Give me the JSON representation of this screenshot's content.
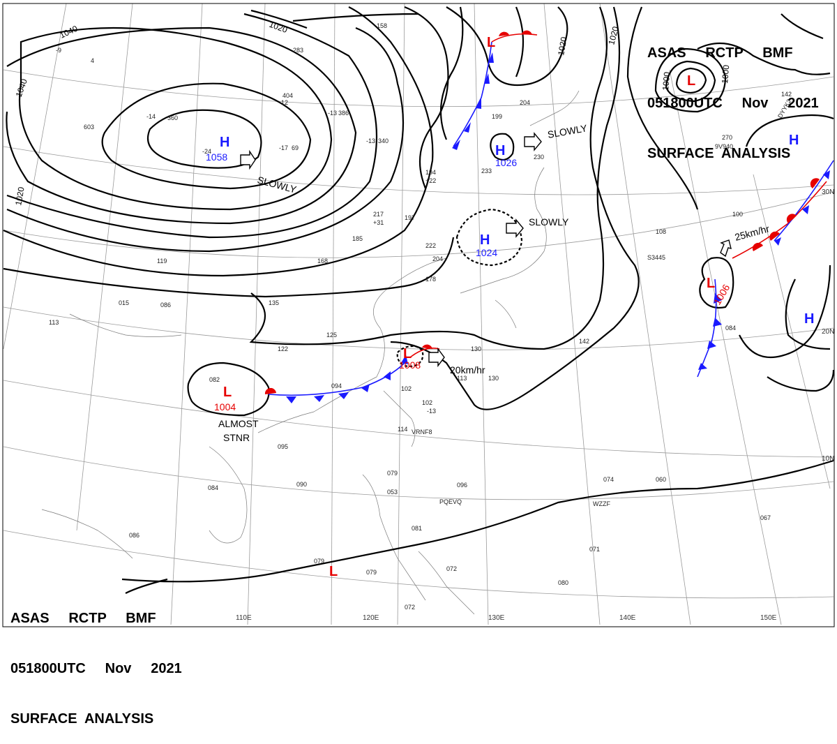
{
  "header_top": {
    "line1": "ASAS     RCTP     BMF",
    "line2": "051800UTC     Nov     2021",
    "line3": "SURFACE  ANALYSIS"
  },
  "header_bottom": {
    "line1": "ASAS     RCTP     BMF",
    "line2": "051800UTC     Nov     2021",
    "line3": "SURFACE  ANALYSIS"
  },
  "pressure_centers": [
    {
      "type": "H",
      "value": "1058",
      "color": "#1a1aff"
    },
    {
      "type": "H",
      "value": "1026",
      "color": "#1a1aff"
    },
    {
      "type": "H",
      "value": "1024",
      "color": "#1a1aff"
    },
    {
      "type": "H",
      "value": "",
      "color": "#1a1aff"
    },
    {
      "type": "H",
      "value": "",
      "color": "#1a1aff"
    },
    {
      "type": "L",
      "value": "1004",
      "color": "#e60000"
    },
    {
      "type": "L",
      "value": "1008",
      "color": "#e60000"
    },
    {
      "type": "L",
      "value": "1006",
      "color": "#e60000"
    },
    {
      "type": "L",
      "value": "",
      "color": "#e60000"
    },
    {
      "type": "L",
      "value": "",
      "color": "#e60000"
    },
    {
      "type": "L",
      "value": "",
      "color": "#e60000"
    }
  ],
  "isobar_labels": [
    "1040",
    "1020",
    "1040",
    "1020",
    "1020",
    "1020",
    "1000",
    "1000"
  ],
  "motion_labels": [
    "SLOWLY",
    "SLOWLY",
    "SLOWLY",
    "20km/hr",
    "25km/hr",
    "ALMOST",
    "STNR"
  ],
  "longitude_labels": [
    "110E",
    "120E",
    "130E",
    "140E",
    "150E"
  ],
  "latitude_labels": [
    "30N",
    "20N",
    "10N"
  ],
  "station_labels": [
    "VRNF8",
    "PQEVQ",
    "WZZF",
    "9V940",
    "DYYK2",
    "S3445"
  ],
  "colors": {
    "high": "#1a1aff",
    "low": "#e60000",
    "isobar": "#000000",
    "grid": "#9a9a9a"
  }
}
